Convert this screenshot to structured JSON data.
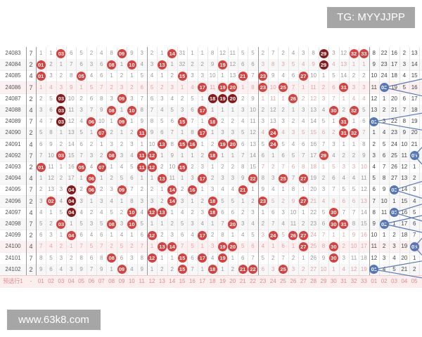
{
  "watermarks": {
    "top_right": "TG: MYYJJPP",
    "bottom_left": "www.63k8.com"
  },
  "colors": {
    "red_ball": "#d7403d",
    "repeat_ball": "#861a1a",
    "blue_ball": "#5576b8"
  },
  "rows": [
    {
      "issue": "24083",
      "lead": "7",
      "red": [
        "1",
        "1",
        "03",
        "6",
        "5",
        "2",
        "4",
        "8",
        "09",
        "9",
        "3",
        "2",
        "1",
        "14",
        "31",
        "1",
        "1",
        "8",
        "12",
        "11",
        "5",
        "5",
        "2",
        "7",
        "2",
        "4",
        "3",
        "8",
        "29",
        "3",
        "12",
        "32",
        "33"
      ],
      "blue": [
        "8",
        "22",
        "16",
        "2",
        "13"
      ],
      "dark": [
        "29"
      ]
    },
    {
      "issue": "24084",
      "lead": "2",
      "red": [
        "01",
        "2",
        "1",
        "7",
        "6",
        "3",
        "6",
        "08",
        "1",
        "10",
        "4",
        "3",
        "13",
        "1",
        "32",
        "2",
        "2",
        "9",
        "19",
        "12",
        "6",
        "6",
        "3",
        "8",
        "3",
        "5",
        "4",
        "9",
        "29",
        "4",
        "13",
        "1",
        "1"
      ],
      "blue": [
        "9",
        "23",
        "17",
        "3",
        "14"
      ],
      "dark": [
        "29"
      ]
    },
    {
      "issue": "24085",
      "lead": "4",
      "red": [
        "01",
        "3",
        "2",
        "8",
        "05",
        "4",
        "6",
        "1",
        "2",
        "1",
        "5",
        "4",
        "1",
        "2",
        "15",
        "3",
        "3",
        "10",
        "1",
        "13",
        "21",
        "7",
        "23",
        "9",
        "4",
        "6",
        "27",
        "10",
        "1",
        "5",
        "14",
        "2",
        "2"
      ],
      "blue": [
        "10",
        "24",
        "18",
        "4",
        "15"
      ],
      "dark": []
    },
    {
      "issue": "24086",
      "lead": "7",
      "red": [
        "1",
        "4",
        "3",
        "9",
        "1",
        "5",
        "7",
        "2",
        "3",
        "2",
        "6",
        "5",
        "2",
        "3",
        "1",
        "4",
        "17",
        "11",
        "19",
        "20",
        "1",
        "8",
        "23",
        "10",
        "25",
        "7",
        "1",
        "11",
        "2",
        "6",
        "31",
        "3",
        "3"
      ],
      "blue": [
        "11",
        "02",
        "19",
        "5",
        "16"
      ],
      "dark": [],
      "pink": true
    },
    {
      "issue": "24087",
      "lead": "2",
      "red": [
        "2",
        "5",
        "03",
        "10",
        "2",
        "6",
        "8",
        "3",
        "09",
        "3",
        "7",
        "6",
        "3",
        "4",
        "2",
        "5",
        "1",
        "18",
        "19",
        "20",
        "2",
        "9",
        "1",
        "11",
        "1",
        "26",
        "2",
        "12",
        "3",
        "7",
        "1",
        "4",
        "4"
      ],
      "blue": [
        "12",
        "1",
        "20",
        "6",
        "17"
      ],
      "dark": [
        "03",
        "18",
        "19",
        "20"
      ]
    },
    {
      "issue": "24088",
      "lead": "4",
      "red": [
        "3",
        "6",
        "03",
        "11",
        "3",
        "7",
        "9",
        "08",
        "1",
        "10",
        "8",
        "7",
        "4",
        "5",
        "3",
        "6",
        "17",
        "1",
        "1",
        "1",
        "3",
        "10",
        "2",
        "12",
        "2",
        "1",
        "3",
        "13",
        "4",
        "30",
        "2",
        "32",
        "5"
      ],
      "blue": [
        "13",
        "2",
        "21",
        "7",
        "18"
      ],
      "dark": [
        "03"
      ]
    },
    {
      "issue": "24089",
      "lead": "7",
      "red": [
        "4",
        "7",
        "03",
        "12",
        "4",
        "06",
        "10",
        "1",
        "09",
        "1",
        "9",
        "8",
        "5",
        "6",
        "15",
        "7",
        "1",
        "18",
        "2",
        "2",
        "4",
        "11",
        "3",
        "13",
        "3",
        "2",
        "4",
        "14",
        "5",
        "1",
        "31",
        "1",
        "6"
      ],
      "blue": [
        "01",
        "3",
        "22",
        "8",
        "19"
      ],
      "dark": [
        "03"
      ]
    },
    {
      "issue": "24090",
      "lead": "2",
      "red": [
        "5",
        "8",
        "1",
        "13",
        "5",
        "1",
        "07",
        "2",
        "1",
        "2",
        "11",
        "9",
        "6",
        "7",
        "1",
        "8",
        "17",
        "1",
        "3",
        "3",
        "5",
        "12",
        "4",
        "24",
        "4",
        "3",
        "5",
        "15",
        "6",
        "2",
        "31",
        "32",
        "7"
      ],
      "blue": [
        "1",
        "4",
        "23",
        "9",
        "20"
      ],
      "dark": []
    },
    {
      "issue": "24091",
      "lead": "4",
      "red": [
        "6",
        "9",
        "2",
        "14",
        "6",
        "2",
        "1",
        "3",
        "2",
        "3",
        "1",
        "10",
        "13",
        "8",
        "15",
        "16",
        "1",
        "2",
        "19",
        "20",
        "6",
        "13",
        "5",
        "24",
        "5",
        "4",
        "6",
        "16",
        "7",
        "3",
        "1",
        "1",
        "8"
      ],
      "blue": [
        "2",
        "5",
        "24",
        "10",
        "21"
      ],
      "dark": []
    },
    {
      "issue": "24092",
      "lead": "7",
      "red": [
        "7",
        "10",
        "03",
        "15",
        "7",
        "3",
        "2",
        "08",
        "3",
        "4",
        "11",
        "12",
        "1",
        "9",
        "1",
        "1",
        "2",
        "18",
        "1",
        "1",
        "7",
        "14",
        "6",
        "1",
        "6",
        "5",
        "7",
        "17",
        "29",
        "4",
        "2",
        "2",
        "9"
      ],
      "blue": [
        "3",
        "6",
        "25",
        "11",
        "05"
      ],
      "dark": []
    },
    {
      "issue": "24093",
      "lead": "2",
      "red": [
        "01",
        "11",
        "1",
        "16",
        "05",
        "4",
        "07",
        "1",
        "4",
        "5",
        "11",
        "12",
        "2",
        "10",
        "15",
        "2",
        "3",
        "1",
        "2",
        "2",
        "8",
        "15",
        "7",
        "2",
        "7",
        "6",
        "8",
        "18",
        "1",
        "5",
        "3",
        "3",
        "10"
      ],
      "blue": [
        "4",
        "7",
        "26",
        "12",
        "1"
      ],
      "dark": []
    },
    {
      "issue": "24094",
      "lead": "4",
      "red": [
        "1",
        "12",
        "2",
        "17",
        "1",
        "06",
        "1",
        "2",
        "5",
        "6",
        "1",
        "1",
        "13",
        "11",
        "1",
        "3",
        "17",
        "2",
        "3",
        "3",
        "9",
        "22",
        "8",
        "3",
        "25",
        "7",
        "27",
        "19",
        "2",
        "6",
        "4",
        "4",
        "11"
      ],
      "blue": [
        "5",
        "8",
        "27",
        "13",
        "2"
      ],
      "dark": []
    },
    {
      "issue": "24095",
      "lead": "7",
      "red": [
        "2",
        "13",
        "3",
        "04",
        "2",
        "06",
        "2",
        "3",
        "09",
        "7",
        "2",
        "2",
        "1",
        "14",
        "2",
        "16",
        "1",
        "3",
        "4",
        "4",
        "21",
        "1",
        "9",
        "4",
        "1",
        "8",
        "1",
        "20",
        "3",
        "7",
        "5",
        "5",
        "12"
      ],
      "blue": [
        "6",
        "9",
        "03",
        "14",
        "3"
      ],
      "dark": [
        "04"
      ]
    },
    {
      "issue": "24096",
      "lead": "2",
      "red": [
        "3",
        "02",
        "4",
        "04",
        "3",
        "1",
        "3",
        "4",
        "1",
        "8",
        "3",
        "3",
        "2",
        "14",
        "3",
        "1",
        "2",
        "18",
        "5",
        "5",
        "1",
        "2",
        "23",
        "5",
        "2",
        "9",
        "27",
        "21",
        "4",
        "8",
        "6",
        "6",
        "13"
      ],
      "blue": [
        "7",
        "10",
        "1",
        "15",
        "4"
      ],
      "dark": [
        "04"
      ]
    },
    {
      "issue": "24097",
      "lead": "4",
      "red": [
        "4",
        "1",
        "5",
        "04",
        "4",
        "2",
        "4",
        "5",
        "2",
        "10",
        "4",
        "12",
        "13",
        "1",
        "4",
        "2",
        "3",
        "18",
        "6",
        "6",
        "2",
        "3",
        "1",
        "6",
        "3",
        "10",
        "1",
        "22",
        "5",
        "30",
        "7",
        "7",
        "14"
      ],
      "blue": [
        "8",
        "11",
        "03",
        "16",
        "5"
      ],
      "dark": [
        "04"
      ]
    },
    {
      "issue": "24098",
      "lead": "7",
      "red": [
        "5",
        "2",
        "03",
        "1",
        "5",
        "3",
        "5",
        "08",
        "3",
        "10",
        "5",
        "1",
        "1",
        "2",
        "5",
        "3",
        "4",
        "1",
        "7",
        "20",
        "3",
        "4",
        "2",
        "7",
        "4",
        "11",
        "2",
        "23",
        "6",
        "30",
        "31",
        "8",
        "15"
      ],
      "blue": [
        "9",
        "02",
        "1",
        "17",
        "6"
      ],
      "dark": []
    },
    {
      "issue": "24099",
      "lead": "2",
      "red": [
        "6",
        "3",
        "1",
        "04",
        "6",
        "4",
        "6",
        "1",
        "4",
        "1",
        "6",
        "12",
        "2",
        "3",
        "6",
        "4",
        "17",
        "2",
        "8",
        "1",
        "4",
        "5",
        "3",
        "24",
        "5",
        "26",
        "27",
        "24",
        "7",
        "1",
        "1",
        "9",
        "16"
      ],
      "blue": [
        "10",
        "1",
        "2",
        "18",
        "7"
      ],
      "dark": []
    },
    {
      "issue": "24100",
      "lead": "4",
      "red": [
        "7",
        "4",
        "2",
        "1",
        "7",
        "5",
        "7",
        "2",
        "5",
        "2",
        "7",
        "1",
        "13",
        "14",
        "7",
        "5",
        "1",
        "3",
        "19",
        "20",
        "5",
        "6",
        "4",
        "1",
        "6",
        "1",
        "27",
        "25",
        "8",
        "30",
        "2",
        "10",
        "17"
      ],
      "blue": [
        "11",
        "2",
        "3",
        "19",
        "05"
      ],
      "dark": [],
      "pink": true
    },
    {
      "issue": "24101",
      "lead": "7",
      "red": [
        "8",
        "5",
        "3",
        "2",
        "8",
        "6",
        "8",
        "08",
        "6",
        "3",
        "8",
        "12",
        "1",
        "1",
        "15",
        "6",
        "17",
        "4",
        "19",
        "1",
        "6",
        "7",
        "5",
        "2",
        "7",
        "2",
        "1",
        "26",
        "9",
        "30",
        "3",
        "11",
        "18"
      ],
      "blue": [
        "12",
        "3",
        "4",
        "20",
        "1"
      ],
      "dark": []
    },
    {
      "issue": "24102",
      "lead": "2",
      "red": [
        "9",
        "6",
        "4",
        "3",
        "9",
        "7",
        "9",
        "1",
        "09",
        "4",
        "9",
        "1",
        "2",
        "2",
        "15",
        "7",
        "1",
        "18",
        "1",
        "2",
        "21",
        "22",
        "6",
        "3",
        "25",
        "3",
        "2",
        "27",
        "10",
        "1",
        "4",
        "12",
        "19"
      ],
      "blue": [
        "01",
        "4",
        "5",
        "21",
        "2"
      ],
      "dark": []
    }
  ],
  "footer": {
    "label": "预选行1",
    "lead": "-",
    "red_labels": [
      "01",
      "02",
      "03",
      "04",
      "05",
      "06",
      "07",
      "08",
      "09",
      "10",
      "11",
      "12",
      "13",
      "14",
      "15",
      "16",
      "17",
      "18",
      "19",
      "20",
      "21",
      "22",
      "23",
      "24",
      "25",
      "26",
      "27",
      "28",
      "29",
      "30",
      "31",
      "32",
      "33"
    ],
    "blue_labels": [
      "01",
      "02",
      "03",
      "04",
      "05"
    ]
  }
}
